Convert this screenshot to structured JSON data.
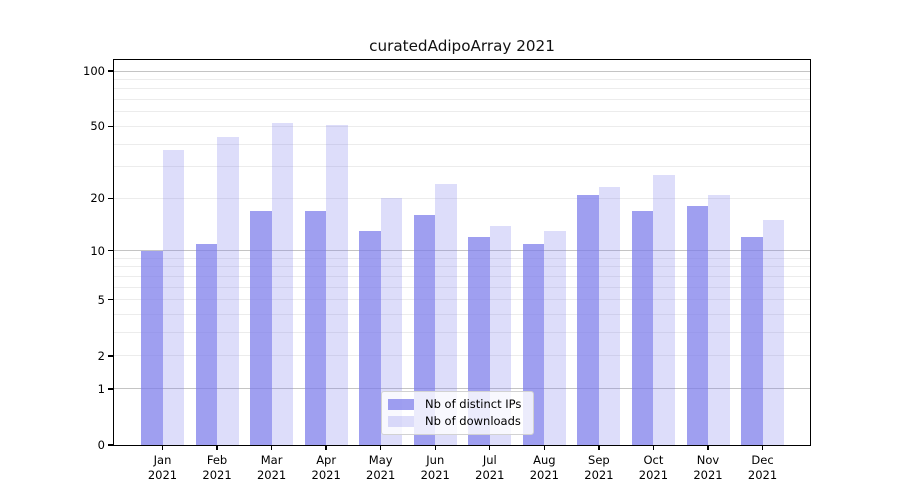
{
  "title": "curatedAdipoArray 2021",
  "chart_data": {
    "type": "bar",
    "title": "curatedAdipoArray 2021",
    "xlabel": "",
    "ylabel": "",
    "yscale": "log1p",
    "ylim": [
      0,
      100
    ],
    "grid": true,
    "year": "2021",
    "categories": [
      "Jan 2021",
      "Feb 2021",
      "Mar 2021",
      "Apr 2021",
      "May 2021",
      "Jun 2021",
      "Jul 2021",
      "Aug 2021",
      "Sep 2021",
      "Oct 2021",
      "Nov 2021",
      "Dec 2021"
    ],
    "months": [
      "Jan",
      "Feb",
      "Mar",
      "Apr",
      "May",
      "Jun",
      "Jul",
      "Aug",
      "Sep",
      "Oct",
      "Nov",
      "Dec"
    ],
    "series": [
      {
        "name": "Nb of distinct IPs",
        "color": "rgba(122,122,234,0.72)",
        "values": [
          10,
          11,
          17,
          17,
          13,
          16,
          12,
          11,
          21,
          17,
          18,
          12
        ]
      },
      {
        "name": "Nb of downloads",
        "color": "rgba(122,122,234,0.26)",
        "values": [
          37,
          44,
          52,
          51,
          20,
          24,
          14,
          13,
          23,
          27,
          21,
          15
        ]
      }
    ],
    "y_ticks": [
      0,
      1,
      2,
      5,
      10,
      20,
      50,
      100
    ],
    "y_major_gridlines": [
      1,
      10,
      100
    ],
    "y_minor_gridlines": [
      2,
      3,
      4,
      5,
      6,
      7,
      8,
      9,
      20,
      30,
      40,
      50,
      60,
      70,
      80,
      90
    ],
    "legend_position": "lower center"
  },
  "legend": {
    "items": [
      {
        "label": "Nb of distinct IPs"
      },
      {
        "label": "Nb of downloads"
      }
    ]
  },
  "colors": {
    "bar_base": "#7a7aea",
    "grid_minor": "#ececec",
    "grid_major": "#c4c4c4",
    "spine": "#000000"
  }
}
